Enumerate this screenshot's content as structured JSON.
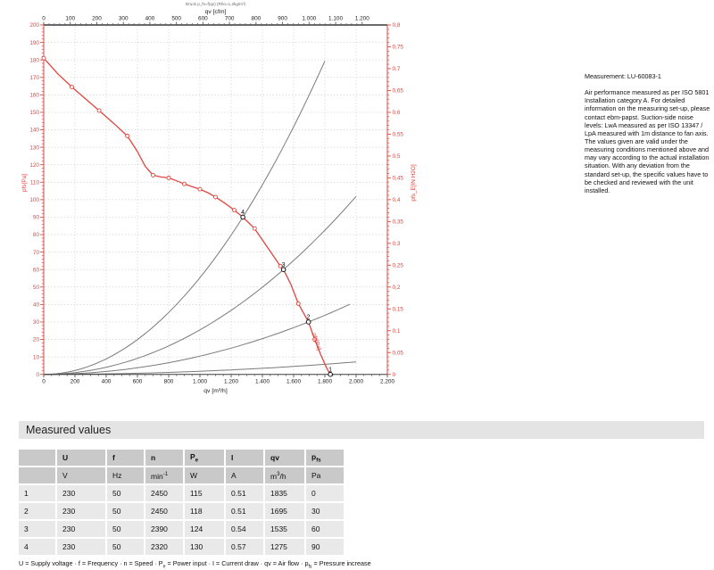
{
  "colors": {
    "accent_red": "#e0463f",
    "curve_gray": "#7a7a7a",
    "grid_gray": "#c8c8c8",
    "axis_dark": "#555555",
    "table_header_bg": "#c9c9c9",
    "table_row_bg": "#e9e9e9",
    "section_bar_bg": "#e4e4e4"
  },
  "measurement_note": {
    "title": "Measurement: LU-60083-1",
    "body": "Air performance measured as per ISO 5801 Installation category A. For detailed information on the measuring set-up, please contact ebm-papst. Suction-side noise levels: LwA measured as per ISO 13347 / LpA measured with 1m distance to fan axis. The values given are valid under the measuring conditions mentioned above and may vary according to the actual installation situation. With any deviation from the standard set-up, the specific values have to be checked and reviewed with the unit installed."
  },
  "section": {
    "title": "Measured values"
  },
  "table": {
    "headers": [
      "",
      "U",
      "f",
      "n",
      "P_(e)",
      "I",
      "qv",
      "p_(fs)"
    ],
    "units": [
      "",
      "V",
      "Hz",
      "min^(-1)",
      "W",
      "A",
      "m^(3)/h",
      "Pa"
    ],
    "rows": [
      [
        "1",
        "230",
        "50",
        "2450",
        "115",
        "0.51",
        "1835",
        "0"
      ],
      [
        "2",
        "230",
        "50",
        "2450",
        "118",
        "0.51",
        "1695",
        "30"
      ],
      [
        "3",
        "230",
        "50",
        "2390",
        "124",
        "0.54",
        "1535",
        "60"
      ],
      [
        "4",
        "230",
        "50",
        "2320",
        "130",
        "0.57",
        "1275",
        "90"
      ]
    ]
  },
  "footer_legend": "U = Supply voltage · f = Frequency · n = Speed · P_(e) = Power input · I = Current draw · qv = Air flow · p_(fs) = Pressure increase",
  "chart_data": {
    "type": "line",
    "title": "Druck p_fs=f(qv) (Rho=1,2kg/m³)",
    "axes": {
      "bottom": {
        "label": "qv [m³/h]",
        "min": 0,
        "max": 2200,
        "major": 200,
        "minor": 50,
        "tick_labels": [
          "0",
          "200",
          "400",
          "600",
          "800",
          "1.000",
          "1.200",
          "1.400",
          "1.600",
          "1.800",
          "2.000",
          "2.200"
        ]
      },
      "top": {
        "label": "qv [cfm]",
        "min": 0,
        "max": 1200,
        "major": 100,
        "minor": 20,
        "m3h_per_cfm": 1.699,
        "tick_labels": [
          "0",
          "100",
          "200",
          "300",
          "400",
          "500",
          "600",
          "700",
          "800",
          "900",
          "1.000",
          "1.100",
          "1.200"
        ]
      },
      "left": {
        "label": "p_(fs)[Pa]",
        "min": 0,
        "max": 200,
        "major": 10,
        "minor": 2,
        "tick_labels": [
          "0",
          "10",
          "20",
          "30",
          "40",
          "50",
          "60",
          "70",
          "80",
          "90",
          "100",
          "110",
          "120",
          "130",
          "140",
          "150",
          "160",
          "170",
          "180",
          "190",
          "200"
        ]
      },
      "right": {
        "label": "p_(fs_E)[IN H2O]",
        "min": 0,
        "max": 0.8,
        "major": 0.05,
        "minor": 0.01,
        "tick_labels": [
          "0",
          "0,05",
          "0,1",
          "0,15",
          "0,2",
          "0,25",
          "0,3",
          "0,35",
          "0,4",
          "0,45",
          "0,5",
          "0,55",
          "0,6",
          "0,65",
          "0,7",
          "0,75",
          "0,8"
        ]
      }
    },
    "fan_curve": {
      "name": "p_(fs)[Pa]",
      "points": [
        [
          0,
          181
        ],
        [
          90,
          172
        ],
        [
          180,
          164.5
        ],
        [
          270,
          157.5
        ],
        [
          355,
          151
        ],
        [
          450,
          143.5
        ],
        [
          535,
          136.5
        ],
        [
          600,
          127.5
        ],
        [
          650,
          119
        ],
        [
          700,
          114
        ],
        [
          750,
          113
        ],
        [
          800,
          112.5
        ],
        [
          850,
          110.8
        ],
        [
          900,
          109
        ],
        [
          950,
          107.5
        ],
        [
          1000,
          106
        ],
        [
          1050,
          104
        ],
        [
          1100,
          101.5
        ],
        [
          1160,
          98
        ],
        [
          1220,
          94
        ],
        [
          1275,
          90
        ],
        [
          1350,
          83.5
        ],
        [
          1430,
          73
        ],
        [
          1515,
          62
        ],
        [
          1535,
          60
        ],
        [
          1580,
          52
        ],
        [
          1630,
          40.5
        ],
        [
          1695,
          30
        ],
        [
          1735,
          20
        ],
        [
          1775,
          11
        ],
        [
          1815,
          3
        ],
        [
          1835,
          0
        ]
      ],
      "marker_points": [
        [
          0,
          181
        ],
        [
          180,
          164.5
        ],
        [
          355,
          151
        ],
        [
          535,
          136.5
        ],
        [
          700,
          114
        ],
        [
          800,
          112.5
        ],
        [
          900,
          109
        ],
        [
          1000,
          106
        ],
        [
          1100,
          101.5
        ],
        [
          1220,
          94
        ],
        [
          1350,
          83.5
        ],
        [
          1515,
          62
        ],
        [
          1630,
          40.5
        ],
        [
          1735,
          20
        ]
      ]
    },
    "system_curves": [
      {
        "q": 1275,
        "p": 90,
        "end": 1835
      },
      {
        "q": 1535,
        "p": 60,
        "end": 2000
      },
      {
        "q": 1695,
        "p": 30,
        "end": 1990
      },
      {
        "q": 1835,
        "p": 6,
        "end": 2000
      }
    ],
    "operating_points": [
      {
        "n": "1",
        "qv": 1835,
        "p": 0
      },
      {
        "n": "2",
        "qv": 1695,
        "p": 30
      },
      {
        "n": "3",
        "qv": 1535,
        "p": 60
      },
      {
        "n": "4",
        "qv": 1275,
        "p": 90
      }
    ]
  }
}
